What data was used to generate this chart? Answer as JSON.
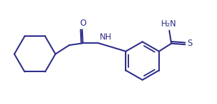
{
  "bg_color": "#ffffff",
  "line_color": "#2d2d8a",
  "line_width": 1.5,
  "label_O": "O",
  "label_NH": "NH",
  "label_H2N": "H₂N",
  "label_S": "S",
  "figsize": [
    3.11,
    1.5
  ],
  "dpi": 100
}
